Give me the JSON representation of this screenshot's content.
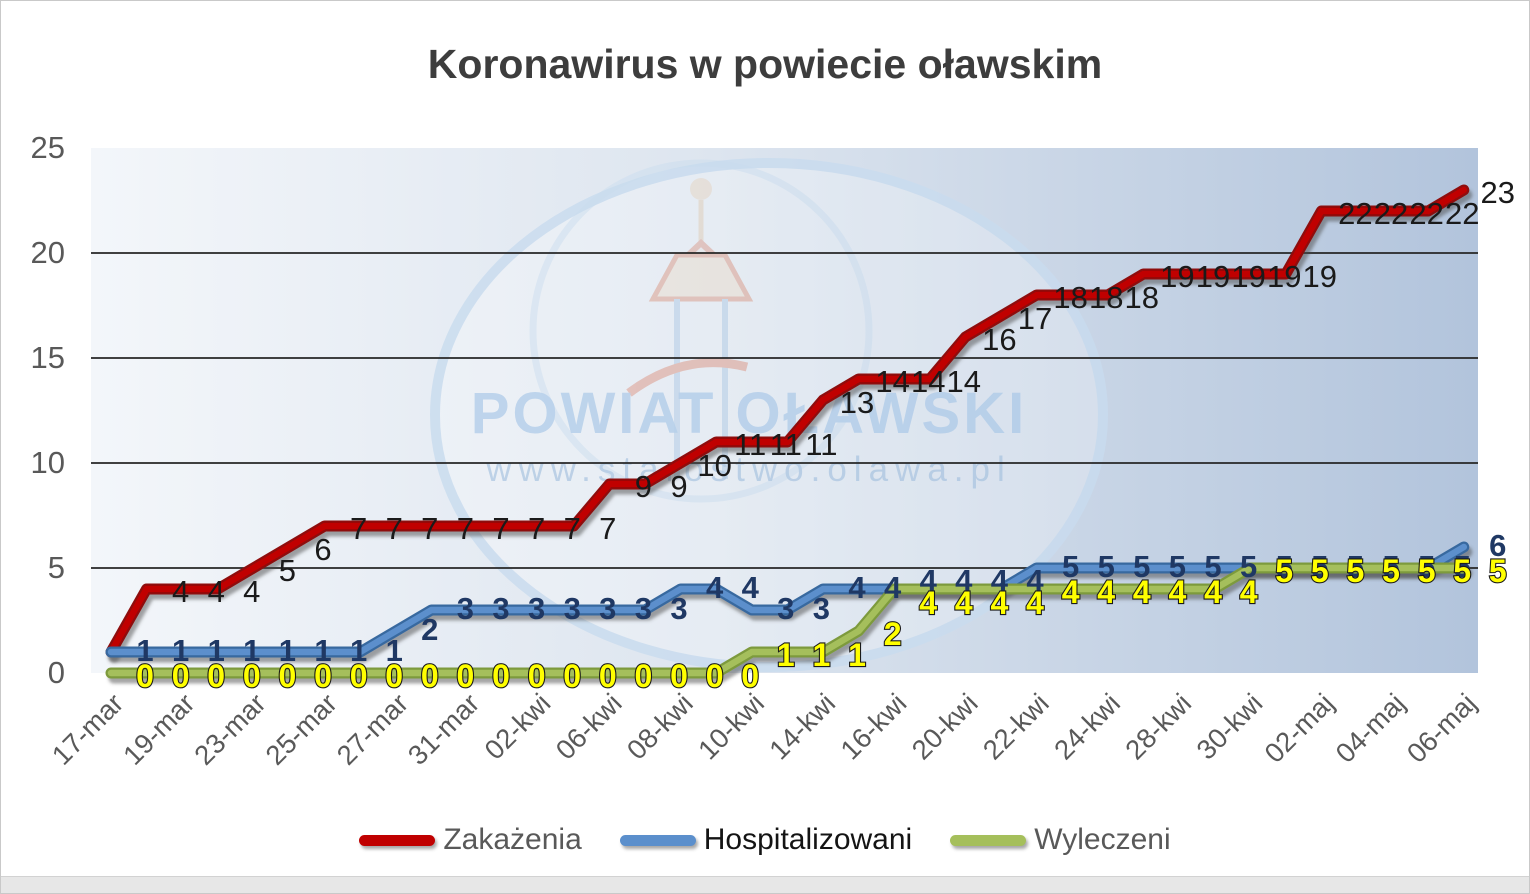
{
  "title": "Koronawirus w powiecie oławskim",
  "watermark": {
    "line1": "POWIAT OŁAWSKI",
    "line2": "www.starostwo.olawa.pl"
  },
  "legend": {
    "items": [
      {
        "label": "Zakażenia",
        "color": "#c00000"
      },
      {
        "label": "Hospitalizowani",
        "color": "#5b8fcc"
      },
      {
        "label": "Wyleczeni",
        "color": "#a5bf5b"
      }
    ]
  },
  "chart_data": {
    "type": "line",
    "title": "Koronawirus w powiecie oławskim",
    "n_points": 39,
    "label_stride": 2,
    "x_labels": [
      "17-mar",
      "19-mar",
      "23-mar",
      "25-mar",
      "27-mar",
      "31-mar",
      "02-kwi",
      "06-kwi",
      "08-kwi",
      "10-kwi",
      "14-kwi",
      "16-kwi",
      "20-kwi",
      "22-kwi",
      "24-kwi",
      "28-kwi",
      "30-kwi",
      "02-maj",
      "04-maj",
      "06-maj"
    ],
    "y_ticks": [
      0,
      5,
      10,
      15,
      20,
      25
    ],
    "ylim": [
      0,
      25
    ],
    "gridlines_at": [
      5,
      10,
      15,
      20
    ],
    "legend_position": "bottom",
    "series": [
      {
        "name": "Zakażenia",
        "color": "#c00000",
        "edge_color": "#8e0b0b",
        "label_color": "#1a1a1a",
        "values": [
          1,
          4,
          4,
          4,
          5,
          6,
          7,
          7,
          7,
          7,
          7,
          7,
          7,
          7,
          9,
          9,
          10,
          11,
          11,
          11,
          13,
          14,
          14,
          14,
          16,
          17,
          18,
          18,
          18,
          19,
          19,
          19,
          19,
          19,
          22,
          22,
          22,
          22,
          23
        ]
      },
      {
        "name": "Hospitalizowani",
        "color": "#5b8fcc",
        "edge_color": "#38699f",
        "label_color": "#1f3864",
        "values": [
          1,
          1,
          1,
          1,
          1,
          1,
          1,
          1,
          2,
          3,
          3,
          3,
          3,
          3,
          3,
          3,
          4,
          4,
          3,
          3,
          4,
          4,
          4,
          4,
          4,
          4,
          5,
          5,
          5,
          5,
          5,
          5,
          5,
          5,
          5,
          5,
          5,
          5,
          6
        ]
      },
      {
        "name": "Wyleczeni",
        "color": "#a5bf5b",
        "edge_color": "#7d9a3c",
        "label_color": "#ffff00",
        "label_outline": "#1a1a1a",
        "values": [
          0,
          0,
          0,
          0,
          0,
          0,
          0,
          0,
          0,
          0,
          0,
          0,
          0,
          0,
          0,
          0,
          0,
          0,
          1,
          1,
          1,
          2,
          4,
          4,
          4,
          4,
          4,
          4,
          4,
          4,
          4,
          4,
          5,
          5,
          5,
          5,
          5,
          5,
          5
        ]
      }
    ]
  }
}
